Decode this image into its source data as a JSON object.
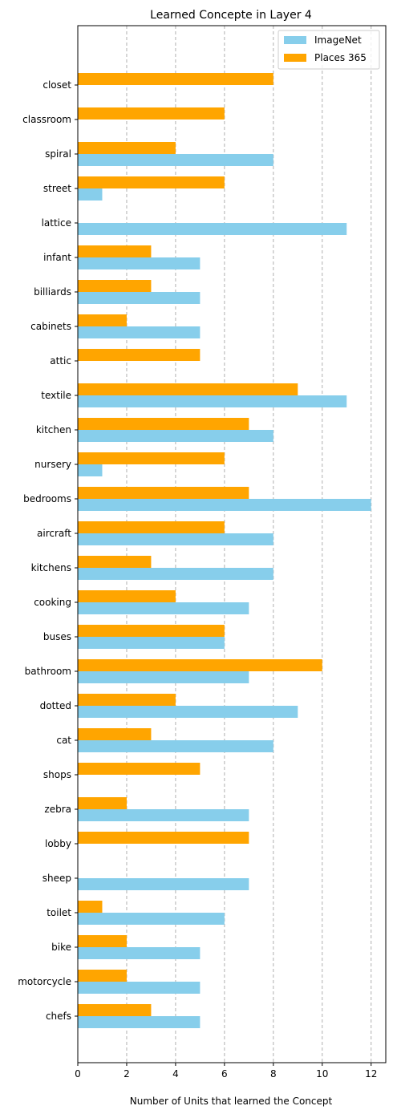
{
  "chart_data": {
    "type": "bar",
    "orientation": "horizontal",
    "title": "Learned Concepte in Layer 4",
    "xlabel": "Number of Units that learned the Concept",
    "ylabel": "",
    "xlim": [
      0,
      12.6
    ],
    "xticks": [
      0,
      2,
      4,
      6,
      8,
      10,
      12
    ],
    "grid": "x-dashed",
    "legend_position": "top-right",
    "categories": [
      "closet",
      "classroom",
      "spiral",
      "street",
      "lattice",
      "infant",
      "billiards",
      "cabinets",
      "attic",
      "textile",
      "kitchen",
      "nursery",
      "bedrooms",
      "aircraft",
      "kitchens",
      "cooking",
      "buses",
      "bathroom",
      "dotted",
      "cat",
      "shops",
      "zebra",
      "lobby",
      "sheep",
      "toilet",
      "bike",
      "motorcycle",
      "chefs"
    ],
    "series": [
      {
        "name": "ImageNet",
        "color": "#87ceeb",
        "values": [
          0,
          0,
          8,
          1,
          11,
          5,
          5,
          5,
          0,
          11,
          8,
          1,
          12,
          8,
          8,
          7,
          6,
          7,
          9,
          8,
          0,
          7,
          0,
          7,
          6,
          5,
          5,
          5
        ]
      },
      {
        "name": "Places 365",
        "color": "#ffa500",
        "values": [
          8,
          6,
          4,
          6,
          0,
          3,
          3,
          2,
          5,
          9,
          7,
          6,
          7,
          6,
          3,
          4,
          6,
          10,
          4,
          3,
          5,
          2,
          7,
          0,
          1,
          2,
          2,
          3
        ]
      }
    ]
  }
}
